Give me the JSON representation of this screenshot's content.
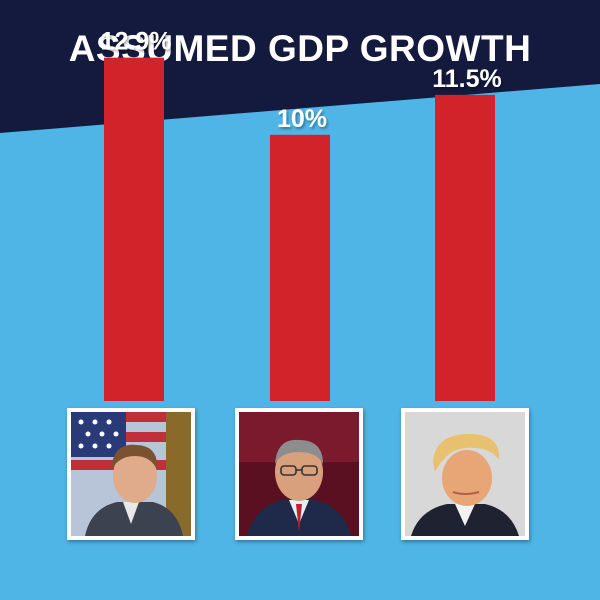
{
  "header": {
    "title": "ASSUMED GDP GROWTH"
  },
  "colors": {
    "background": "#4fb5e6",
    "header": "#141a3d",
    "bar": "#d12329",
    "text": "#ffffff"
  },
  "chart_data": {
    "type": "bar",
    "title": "ASSUMED GDP GROWTH",
    "categories": [
      "",
      "",
      ""
    ],
    "values": [
      12.9,
      10,
      11.5
    ],
    "data_labels": [
      "12.9%",
      "10%",
      "11.5%"
    ],
    "unit": "%",
    "ylim": [
      0,
      13.6
    ],
    "grid": false,
    "legend": "none"
  },
  "photos": [
    {
      "icon": "candidate-1-portrait-icon"
    },
    {
      "icon": "candidate-2-portrait-icon"
    },
    {
      "icon": "candidate-3-portrait-icon"
    }
  ]
}
